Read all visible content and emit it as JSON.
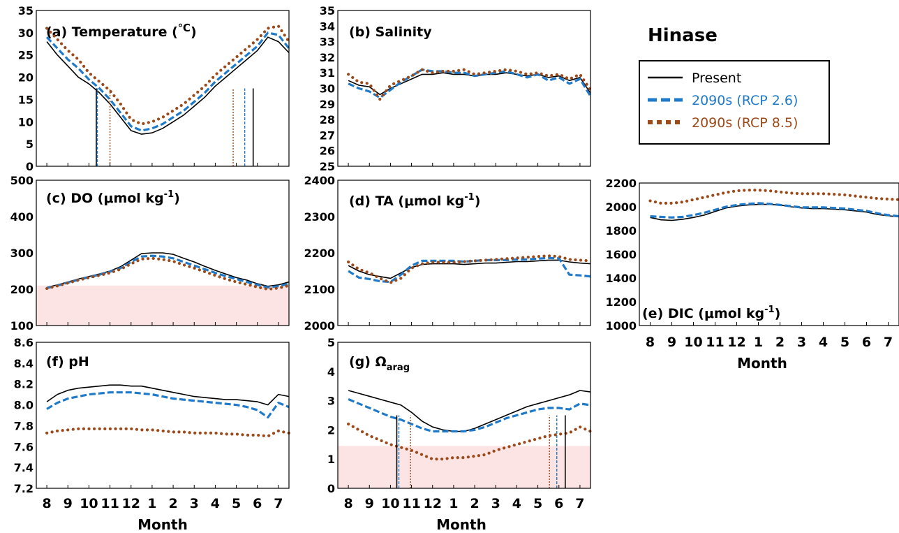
{
  "station": "Hinase",
  "x_label": "Month",
  "months": [
    "8",
    "9",
    "10",
    "11",
    "12",
    "1",
    "2",
    "3",
    "4",
    "5",
    "6",
    "7"
  ],
  "legend": [
    {
      "label": "Present",
      "color": "#000000",
      "style": "solid"
    },
    {
      "label": "2090s (RCP 2.6)",
      "color": "#1f7ac9",
      "style": "dashed"
    },
    {
      "label": "2090s (RCP 8.5)",
      "color": "#9c4a1a",
      "style": "dotted"
    }
  ],
  "colors": {
    "present": "#000000",
    "rcp26": "#1f7ac9",
    "rcp85": "#9c4a1a",
    "shade": "#fde4e4"
  },
  "chart_data": [
    {
      "id": "a",
      "type": "line",
      "title_prefix": "(a) Temperature (",
      "title_unit": "℃",
      "title_suffix": ")",
      "ylim": [
        0,
        35
      ],
      "yticks": [
        "0",
        "5",
        "10",
        "15",
        "20",
        "25",
        "30",
        "35"
      ],
      "x": [
        0,
        0.5,
        1,
        1.5,
        2,
        2.5,
        3,
        3.5,
        4,
        4.5,
        5,
        5.5,
        6,
        6.5,
        7,
        7.5,
        8,
        8.5,
        9,
        9.5,
        10,
        10.5,
        11,
        11.5
      ],
      "series": [
        {
          "name": "Present",
          "values": [
            28,
            25,
            22.5,
            20,
            18.5,
            16.5,
            14,
            11,
            8,
            7.2,
            7.5,
            8.5,
            10,
            11.5,
            13.5,
            15.5,
            18,
            20,
            22,
            24,
            26,
            29,
            28,
            25.5
          ]
        },
        {
          "name": "2090s (RCP 2.6)",
          "values": [
            29,
            26.5,
            24,
            22,
            19.5,
            17.5,
            15,
            12,
            9,
            8,
            8.5,
            9.5,
            11,
            12.5,
            14.5,
            16.5,
            19,
            21,
            23,
            25,
            27,
            30,
            29.5,
            26.5
          ]
        },
        {
          "name": "2090s (RCP 8.5)",
          "values": [
            31,
            28.5,
            26,
            24,
            21,
            19,
            17,
            14,
            10.5,
            9.5,
            10,
            11,
            12.5,
            14,
            16,
            18,
            20.5,
            22.5,
            24.5,
            26.5,
            28.5,
            31,
            31.5,
            28
          ]
        }
      ],
      "vlines": [
        {
          "series": "Present",
          "x": [
            2.35,
            9.8
          ]
        },
        {
          "series": "2090s (RCP 2.6)",
          "x": [
            2.4,
            9.4
          ]
        },
        {
          "series": "2090s (RCP 8.5)",
          "x": [
            3.0,
            8.85
          ]
        }
      ]
    },
    {
      "id": "b",
      "type": "line",
      "title": "(b) Salinity",
      "ylim": [
        25,
        35
      ],
      "yticks": [
        "25",
        "26",
        "27",
        "28",
        "29",
        "30",
        "31",
        "32",
        "33",
        "34",
        "35"
      ],
      "x": [
        0,
        0.5,
        1,
        1.5,
        2,
        2.5,
        3,
        3.5,
        4,
        4.5,
        5,
        5.5,
        6,
        6.5,
        7,
        7.5,
        8,
        8.5,
        9,
        9.5,
        10,
        10.5,
        11,
        11.5
      ],
      "series": [
        {
          "name": "Present",
          "values": [
            30.5,
            30.2,
            30.1,
            29.6,
            30.0,
            30.3,
            30.6,
            30.9,
            30.9,
            31.0,
            30.9,
            30.9,
            30.8,
            30.9,
            30.9,
            31.0,
            30.9,
            30.8,
            30.9,
            30.7,
            30.8,
            30.5,
            30.7,
            29.7
          ]
        },
        {
          "name": "2090s (RCP 2.6)",
          "values": [
            30.3,
            30.0,
            29.8,
            29.4,
            29.9,
            30.4,
            30.8,
            31.2,
            31.1,
            31.1,
            31.0,
            31.0,
            30.8,
            30.9,
            31.0,
            31.1,
            30.9,
            30.7,
            30.9,
            30.5,
            30.7,
            30.3,
            30.6,
            29.5
          ]
        },
        {
          "name": "2090s (RCP 8.5)",
          "values": [
            30.9,
            30.4,
            30.3,
            29.3,
            30.2,
            30.5,
            30.8,
            31.2,
            31.0,
            31.1,
            31.1,
            31.2,
            30.9,
            31.0,
            31.1,
            31.2,
            31.1,
            30.9,
            31.0,
            30.8,
            30.9,
            30.6,
            30.9,
            29.9
          ]
        }
      ]
    },
    {
      "id": "c",
      "type": "line",
      "title_main": "(c) DO (μmol kg",
      "title_sup": "-1",
      "title_end": ")",
      "ylim": [
        100,
        500
      ],
      "yticks": [
        "100",
        "200",
        "300",
        "400",
        "500"
      ],
      "shade_below": 210,
      "x": [
        0,
        0.5,
        1,
        1.5,
        2,
        2.5,
        3,
        3.5,
        4,
        4.5,
        5,
        5.5,
        6,
        6.5,
        7,
        7.5,
        8,
        8.5,
        9,
        9.5,
        10,
        10.5,
        11,
        11.5
      ],
      "series": [
        {
          "name": "Present",
          "values": [
            205,
            212,
            220,
            228,
            235,
            242,
            250,
            262,
            280,
            298,
            300,
            300,
            296,
            285,
            275,
            263,
            252,
            242,
            232,
            225,
            215,
            208,
            212,
            220
          ]
        },
        {
          "name": "2090s (RCP 2.6)",
          "values": [
            203,
            210,
            218,
            226,
            233,
            240,
            248,
            258,
            275,
            290,
            292,
            290,
            285,
            275,
            265,
            255,
            245,
            236,
            228,
            220,
            212,
            205,
            208,
            215
          ]
        },
        {
          "name": "2090s (RCP 8.5)",
          "values": [
            202,
            209,
            217,
            225,
            232,
            238,
            245,
            255,
            270,
            283,
            285,
            282,
            277,
            267,
            258,
            248,
            238,
            228,
            220,
            213,
            206,
            200,
            203,
            210
          ]
        }
      ]
    },
    {
      "id": "d",
      "type": "line",
      "title_main": "(d) TA (μmol kg",
      "title_sup": "-1",
      "title_end": ")",
      "ylim": [
        2000,
        2400
      ],
      "yticks": [
        "2000",
        "2100",
        "2200",
        "2300",
        "2400"
      ],
      "x": [
        0,
        0.5,
        1,
        1.5,
        2,
        2.5,
        3,
        3.5,
        4,
        4.5,
        5,
        5.5,
        6,
        6.5,
        7,
        7.5,
        8,
        8.5,
        9,
        9.5,
        10,
        10.5,
        11,
        11.5
      ],
      "series": [
        {
          "name": "Present",
          "values": [
            2165,
            2150,
            2140,
            2135,
            2130,
            2145,
            2160,
            2168,
            2170,
            2170,
            2170,
            2168,
            2170,
            2172,
            2172,
            2174,
            2176,
            2176,
            2178,
            2180,
            2180,
            2175,
            2172,
            2170
          ]
        },
        {
          "name": "2090s (RCP 2.6)",
          "values": [
            2150,
            2132,
            2128,
            2122,
            2120,
            2140,
            2165,
            2178,
            2178,
            2178,
            2178,
            2176,
            2178,
            2180,
            2180,
            2180,
            2182,
            2182,
            2184,
            2186,
            2185,
            2140,
            2138,
            2135
          ]
        },
        {
          "name": "2090s (RCP 8.5)",
          "values": [
            2175,
            2155,
            2145,
            2130,
            2118,
            2130,
            2158,
            2170,
            2174,
            2174,
            2174,
            2176,
            2178,
            2180,
            2182,
            2184,
            2186,
            2188,
            2190,
            2192,
            2190,
            2182,
            2180,
            2178
          ]
        }
      ]
    },
    {
      "id": "e",
      "type": "line",
      "title_main": "(e) DIC (μmol kg",
      "title_sup": "-1",
      "title_end": ")",
      "ylim": [
        1000,
        2200
      ],
      "yticks": [
        "1000",
        "1200",
        "1400",
        "1600",
        "1800",
        "2000",
        "2200"
      ],
      "x": [
        0,
        0.5,
        1,
        1.5,
        2,
        2.5,
        3,
        3.5,
        4,
        4.5,
        5,
        5.5,
        6,
        6.5,
        7,
        7.5,
        8,
        8.5,
        9,
        9.5,
        10,
        10.5,
        11,
        11.5
      ],
      "series": [
        {
          "name": "Present",
          "values": [
            1910,
            1890,
            1885,
            1895,
            1910,
            1930,
            1960,
            1990,
            2005,
            2015,
            2020,
            2020,
            2015,
            2000,
            1990,
            1985,
            1985,
            1980,
            1975,
            1965,
            1955,
            1935,
            1925,
            1915
          ]
        },
        {
          "name": "2090s (RCP 2.6)",
          "values": [
            1920,
            1915,
            1910,
            1915,
            1930,
            1950,
            1975,
            2000,
            2015,
            2025,
            2030,
            2025,
            2015,
            2005,
            1995,
            1995,
            1995,
            1990,
            1985,
            1975,
            1965,
            1945,
            1930,
            1920
          ]
        },
        {
          "name": "2090s (RCP 8.5)",
          "values": [
            2050,
            2030,
            2030,
            2040,
            2060,
            2080,
            2100,
            2120,
            2135,
            2140,
            2140,
            2135,
            2125,
            2115,
            2110,
            2110,
            2110,
            2105,
            2100,
            2090,
            2080,
            2070,
            2065,
            2060
          ]
        }
      ]
    },
    {
      "id": "f",
      "type": "line",
      "title": "(f) pH",
      "ylim": [
        7.2,
        8.6
      ],
      "yticks": [
        "7.2",
        "7.4",
        "7.6",
        "7.8",
        "8.0",
        "8.2",
        "8.4",
        "8.6"
      ],
      "x": [
        0,
        0.5,
        1,
        1.5,
        2,
        2.5,
        3,
        3.5,
        4,
        4.5,
        5,
        5.5,
        6,
        6.5,
        7,
        7.5,
        8,
        8.5,
        9,
        9.5,
        10,
        10.5,
        11,
        11.5
      ],
      "series": [
        {
          "name": "Present",
          "values": [
            8.03,
            8.1,
            8.14,
            8.16,
            8.17,
            8.18,
            8.19,
            8.19,
            8.18,
            8.18,
            8.16,
            8.14,
            8.12,
            8.1,
            8.08,
            8.07,
            8.06,
            8.05,
            8.05,
            8.04,
            8.03,
            8.0,
            8.1,
            8.08
          ]
        },
        {
          "name": "2090s (RCP 2.6)",
          "values": [
            7.96,
            8.02,
            8.06,
            8.08,
            8.1,
            8.11,
            8.12,
            8.12,
            8.12,
            8.11,
            8.1,
            8.08,
            8.06,
            8.05,
            8.04,
            8.03,
            8.02,
            8.01,
            8.0,
            7.98,
            7.95,
            7.88,
            8.02,
            7.98
          ]
        },
        {
          "name": "2090s (RCP 8.5)",
          "values": [
            7.73,
            7.75,
            7.76,
            7.77,
            7.77,
            7.77,
            7.77,
            7.77,
            7.77,
            7.76,
            7.76,
            7.75,
            7.74,
            7.74,
            7.73,
            7.73,
            7.73,
            7.72,
            7.72,
            7.71,
            7.71,
            7.7,
            7.75,
            7.73
          ]
        }
      ]
    },
    {
      "id": "g",
      "type": "line",
      "title_main": "(g) Ω",
      "title_sub": "arag",
      "ylim": [
        0,
        5
      ],
      "yticks": [
        "0",
        "1",
        "2",
        "3",
        "4",
        "5"
      ],
      "shade_below": 1.45,
      "x": [
        0,
        0.5,
        1,
        1.5,
        2,
        2.5,
        3,
        3.5,
        4,
        4.5,
        5,
        5.5,
        6,
        6.5,
        7,
        7.5,
        8,
        8.5,
        9,
        9.5,
        10,
        10.5,
        11,
        11.5
      ],
      "series": [
        {
          "name": "Present",
          "values": [
            3.35,
            3.25,
            3.15,
            3.05,
            2.95,
            2.85,
            2.6,
            2.3,
            2.1,
            2.0,
            1.95,
            1.95,
            2.05,
            2.2,
            2.35,
            2.5,
            2.65,
            2.8,
            2.9,
            3.0,
            3.1,
            3.2,
            3.35,
            3.3
          ]
        },
        {
          "name": "2090s (RCP 2.6)",
          "values": [
            3.05,
            2.9,
            2.75,
            2.6,
            2.45,
            2.35,
            2.2,
            2.05,
            1.95,
            1.95,
            1.95,
            1.95,
            2.0,
            2.1,
            2.25,
            2.4,
            2.5,
            2.6,
            2.7,
            2.75,
            2.75,
            2.7,
            2.9,
            2.85
          ]
        },
        {
          "name": "2090s (RCP 8.5)",
          "values": [
            2.2,
            2.0,
            1.8,
            1.65,
            1.5,
            1.4,
            1.3,
            1.15,
            1.0,
            1.0,
            1.05,
            1.05,
            1.1,
            1.15,
            1.3,
            1.4,
            1.5,
            1.6,
            1.7,
            1.8,
            1.85,
            1.9,
            2.1,
            1.95
          ]
        }
      ],
      "vlines": [
        {
          "series": "Present",
          "x": [
            2.3,
            10.3
          ]
        },
        {
          "series": "2090s (RCP 2.6)",
          "x": [
            2.4,
            9.9
          ]
        },
        {
          "series": "2090s (RCP 8.5)",
          "x": [
            2.95,
            9.55
          ]
        }
      ]
    }
  ]
}
